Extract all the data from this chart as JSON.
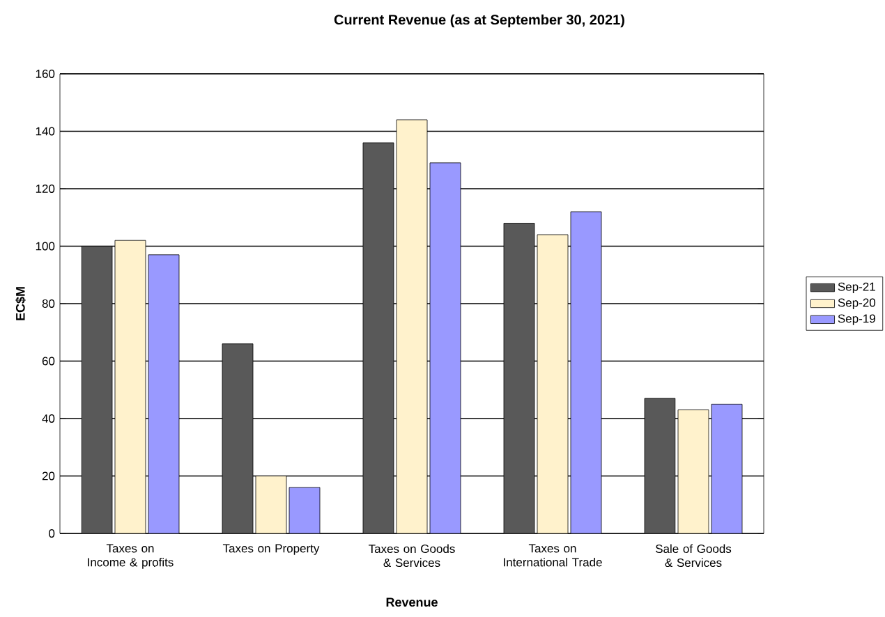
{
  "chart_data": {
    "type": "bar",
    "title": "Current Revenue (as at September 30, 2021)",
    "xlabel": "Revenue",
    "ylabel": "EC$M",
    "categories": [
      "Taxes on Income & profits",
      "Taxes on Property",
      "Taxes on Goods & Services",
      "Taxes on International Trade",
      "Sale of Goods & Services"
    ],
    "series": [
      {
        "name": "Sep-21",
        "color": "#595959",
        "values": [
          100,
          66,
          136,
          108,
          47
        ]
      },
      {
        "name": "Sep-20",
        "color": "#fff2cc",
        "values": [
          102,
          20,
          144,
          104,
          43
        ]
      },
      {
        "name": "Sep-19",
        "color": "#9999ff",
        "values": [
          97,
          16,
          129,
          112,
          45
        ]
      }
    ],
    "ylim": [
      0,
      160
    ],
    "yticks": [
      0,
      20,
      40,
      60,
      80,
      100,
      120,
      140,
      160
    ],
    "grid": "y",
    "legend": "right"
  }
}
